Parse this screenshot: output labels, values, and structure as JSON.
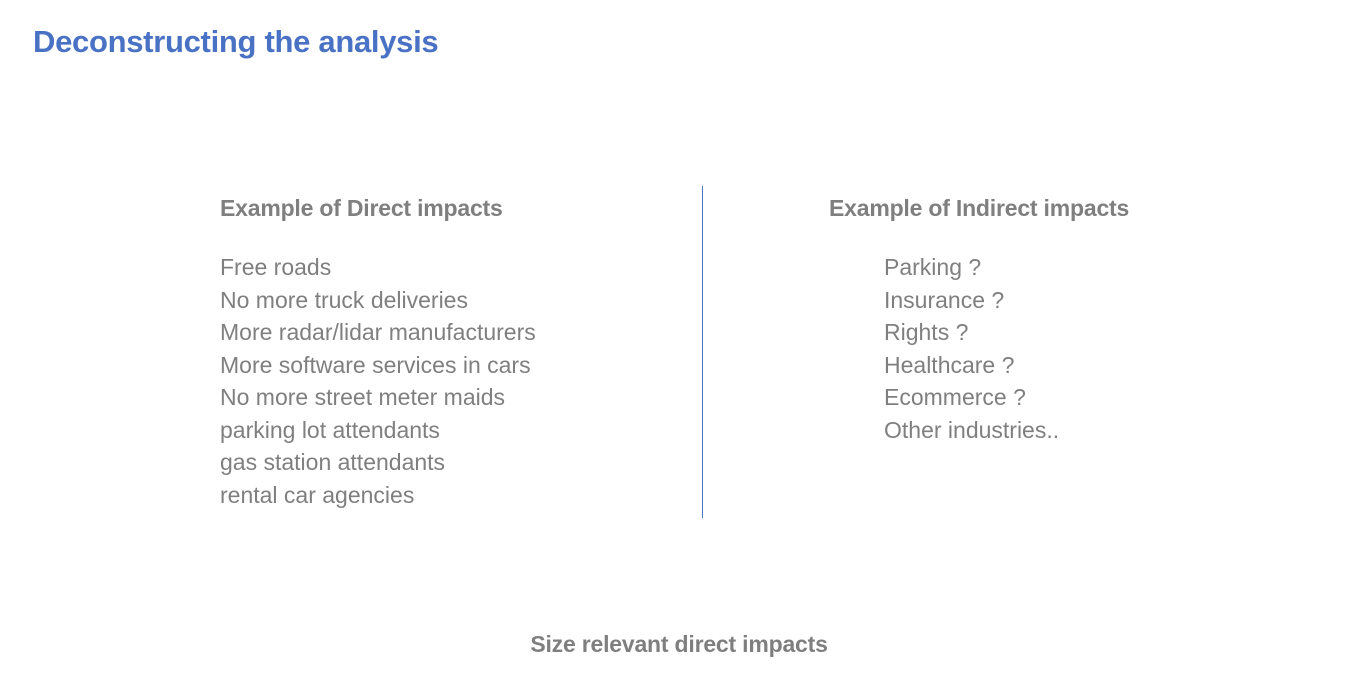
{
  "title": "Deconstructing the analysis",
  "direct": {
    "heading": "Example of Direct impacts",
    "items": [
      "Free roads",
      "No more truck deliveries",
      "More radar/lidar manufacturers",
      "More software services in cars",
      "No more street meter maids",
      "parking lot attendants",
      "gas station attendants",
      "rental car agencies"
    ]
  },
  "indirect": {
    "heading": "Example of Indirect impacts",
    "items": [
      "Parking ?",
      "Insurance ?",
      "Rights ?",
      "Healthcare ?",
      "Ecommerce ?",
      "Other industries.."
    ]
  },
  "footer": {
    "text": "Size relevant direct impacts"
  },
  "colors": {
    "accent": "#4a72c4",
    "body_text": "#7f7f7f"
  }
}
